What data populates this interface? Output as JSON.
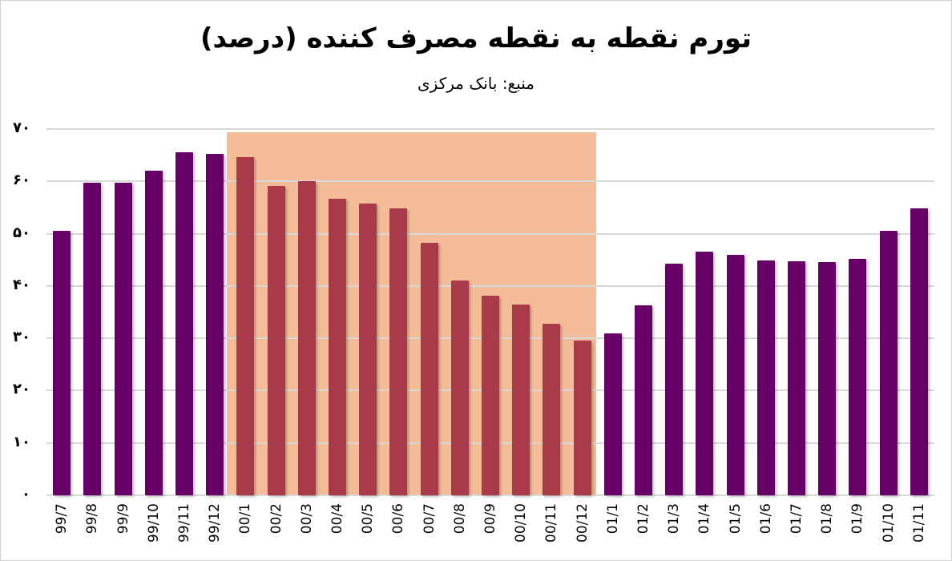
{
  "title": "تورم نقطه به نقطه مصرف کننده (درصد)",
  "subtitle": "منبع: بانک مرکزی",
  "colors": {
    "default_bar": "#660066",
    "highlight_bar": "#a83a4a",
    "highlight_band": "#f4bd98",
    "grid": "#d9d9d9"
  },
  "y_ticks": [
    "۰",
    "۱۰",
    "۲۰",
    "۳۰",
    "۴۰",
    "۵۰",
    "۶۰",
    "۷۰"
  ],
  "chart_data": {
    "type": "bar",
    "title": "تورم نقطه به نقطه مصرف کننده (درصد)",
    "subtitle": "منبع: بانک مرکزی",
    "xlabel": "",
    "ylabel": "",
    "ylim": [
      0,
      70
    ],
    "y_tick_values": [
      0,
      10,
      20,
      30,
      40,
      50,
      60,
      70
    ],
    "grid": true,
    "legend": "none",
    "categories": [
      "99/7",
      "99/8",
      "99/9",
      "99/10",
      "99/11",
      "99/12",
      "00/1",
      "00/2",
      "00/3",
      "00/4",
      "00/5",
      "00/6",
      "00/7",
      "00/8",
      "00/9",
      "00/10",
      "00/11",
      "00/12",
      "01/1",
      "01/2",
      "01/3",
      "01/4",
      "01/5",
      "01/6",
      "01/7",
      "01/8",
      "01/9",
      "01/10",
      "01/11"
    ],
    "values": [
      50.5,
      59.8,
      59.7,
      62.0,
      65.5,
      65.3,
      64.7,
      59.2,
      60.0,
      56.7,
      55.8,
      54.9,
      48.3,
      41.1,
      38.2,
      36.5,
      32.8,
      29.6,
      31.0,
      36.3,
      44.2,
      46.5,
      45.9,
      44.9,
      44.8,
      44.5,
      45.2,
      50.6,
      54.8
    ],
    "highlighted_range": [
      "00/1",
      "00/12"
    ],
    "annotations": [
      "Shaded band highlights 00/1 – 00/12 with bars in a different color"
    ]
  }
}
